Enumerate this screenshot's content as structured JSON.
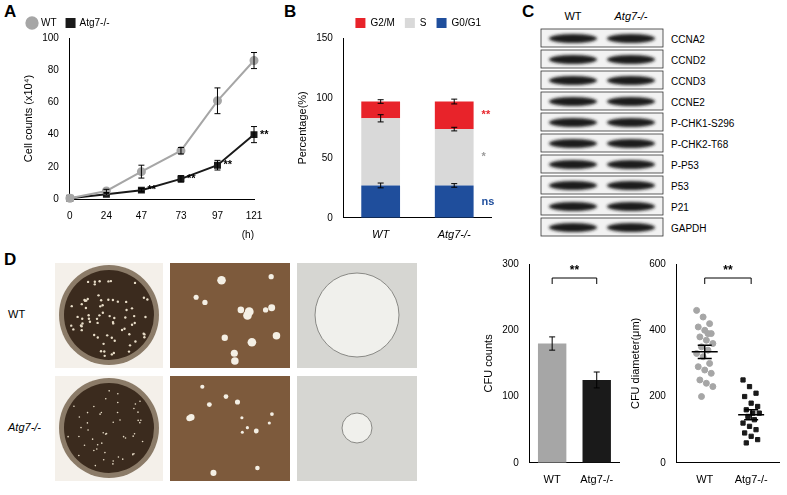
{
  "chart_data": [
    {
      "panel": "A",
      "type": "line",
      "x_label": "(h)",
      "y_label": "Cell counts (x10⁴)",
      "x": [
        0,
        24,
        47,
        73,
        97,
        121
      ],
      "xlim": [
        0,
        121
      ],
      "xticks": [
        0,
        24,
        47,
        73,
        97,
        121
      ],
      "ylim": [
        0,
        100
      ],
      "yticks": [
        0,
        20,
        40,
        60,
        80,
        100
      ],
      "grid": false,
      "legend": "upper left",
      "series": [
        {
          "name": "WT",
          "color": "#a6a6a6",
          "marker": "circle",
          "values": [
            0.5,
            5,
            17,
            30,
            61,
            86
          ],
          "errors": [
            0,
            1,
            4,
            2,
            8,
            5
          ]
        },
        {
          "name": "Atg7-/-",
          "color": "#1a1a1a",
          "marker": "square",
          "values": [
            0.5,
            3,
            5.5,
            12.5,
            21,
            40
          ],
          "errors": [
            0,
            0.5,
            1,
            2,
            3,
            5
          ],
          "annotations": [
            null,
            null,
            "**",
            "**",
            "**",
            "**"
          ]
        }
      ]
    },
    {
      "panel": "B",
      "type": "bar",
      "stacked": true,
      "y_label": "Percentage(%)",
      "categories": [
        "WT",
        "Atg7-/-"
      ],
      "ylim": [
        0,
        150
      ],
      "yticks": [
        0,
        50,
        100,
        150
      ],
      "grid": false,
      "legend": "upper right",
      "series": [
        {
          "name": "G0/G1",
          "color": "#1f4e9c",
          "values": [
            27,
            27
          ],
          "errors": [
            2,
            1.5
          ],
          "annotation": "ns"
        },
        {
          "name": "S",
          "color": "#d9d9d9",
          "values": [
            56,
            47
          ],
          "errors": [
            3,
            1.5
          ],
          "annotation": "*"
        },
        {
          "name": "G2/M",
          "color": "#e8232a",
          "values": [
            14,
            23
          ],
          "errors": [
            1.5,
            2
          ],
          "annotation": "**"
        }
      ]
    },
    {
      "type": "bar",
      "y_label": "CFU counts",
      "categories": [
        "WT",
        "Atg7-/-"
      ],
      "values": [
        180,
        125
      ],
      "errors": [
        10,
        12
      ],
      "colors": [
        "#a6a6a6",
        "#1a1a1a"
      ],
      "ylim": [
        0,
        300
      ],
      "yticks": [
        0,
        100,
        200,
        300
      ],
      "grid": false,
      "annotation": "**"
    },
    {
      "type": "scatter",
      "y_label": "CFU diameter(μm)",
      "categories": [
        "WT",
        "Atg7-/-"
      ],
      "colors": [
        "#a6a6a6",
        "#1a1a1a"
      ],
      "values": [
        [
          460,
          440,
          420,
          410,
          400,
          390,
          380,
          370,
          360,
          350,
          340,
          330,
          320,
          300,
          290,
          280,
          270,
          250,
          240,
          230,
          200,
          390
        ],
        [
          250,
          230,
          210,
          200,
          180,
          170,
          160,
          150,
          150,
          140,
          130,
          120,
          110,
          100,
          90,
          80,
          70,
          60
        ]
      ],
      "mean": [
        335,
        145
      ],
      "sem": [
        20,
        15
      ],
      "ylim": [
        0,
        600
      ],
      "yticks": [
        0,
        200,
        400,
        600
      ],
      "grid": false,
      "annotation": "**"
    }
  ],
  "blot": {
    "panel": "C",
    "columns": [
      "WT",
      "Atg7-/-"
    ],
    "rows": [
      "CCNA2",
      "CCND2",
      "CCND3",
      "CCNE2",
      "P-CHK1-S296",
      "P-CHK2-T68",
      "P-P53",
      "P53",
      "P21",
      "GAPDH"
    ]
  },
  "images": {
    "panel": "D",
    "rows": [
      "WT",
      "Atg7-/-"
    ]
  }
}
